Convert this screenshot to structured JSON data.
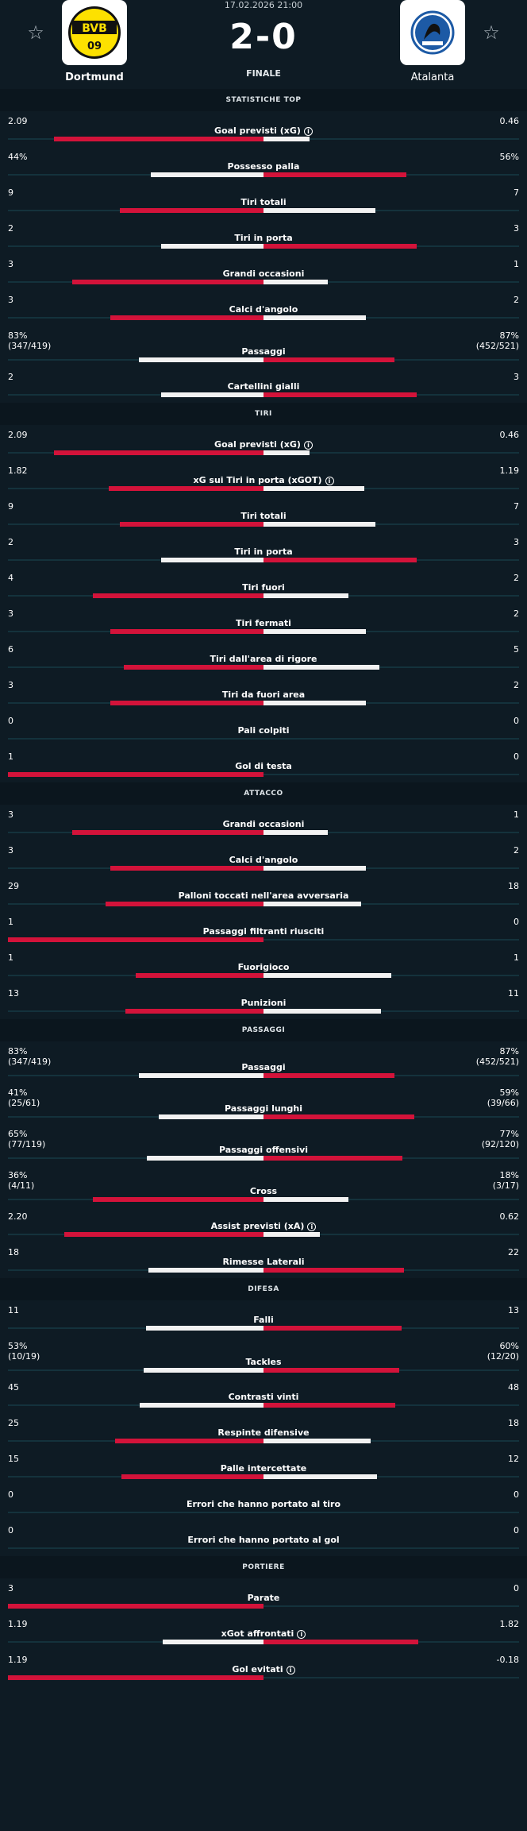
{
  "match": {
    "date": "17.02.2026 21:00",
    "score": "2-0",
    "status": "FINALE",
    "home_team": "Dortmund",
    "away_team": "Atalanta",
    "favorite_icon": "☆"
  },
  "colors": {
    "background": "#0e1b24",
    "leader": "#d3133a",
    "other": "#f2f2f2"
  },
  "sections": [
    {
      "title": "STATISTICHE TOP",
      "rows": [
        {
          "label": "Goal previsti (xG)",
          "info": true,
          "home": "2.09",
          "away": "0.46",
          "hn": 2.09,
          "an": 0.46
        },
        {
          "label": "Possesso palla",
          "home": "44%",
          "away": "56%",
          "hn": 44,
          "an": 56
        },
        {
          "label": "Tiri totali",
          "home": "9",
          "away": "7",
          "hn": 9,
          "an": 7
        },
        {
          "label": "Tiri in porta",
          "home": "2",
          "away": "3",
          "hn": 2,
          "an": 3
        },
        {
          "label": "Grandi occasioni",
          "home": "3",
          "away": "1",
          "hn": 3,
          "an": 1
        },
        {
          "label": "Calci d'angolo",
          "home": "3",
          "away": "2",
          "hn": 3,
          "an": 2
        },
        {
          "label": "Passaggi",
          "home": "83%",
          "home_sub": "(347/419)",
          "away": "87%",
          "away_sub": "(452/521)",
          "hn": 83,
          "an": 87
        },
        {
          "label": "Cartellini gialli",
          "home": "2",
          "away": "3",
          "hn": 2,
          "an": 3
        }
      ]
    },
    {
      "title": "TIRI",
      "rows": [
        {
          "label": "Goal previsti (xG)",
          "info": true,
          "home": "2.09",
          "away": "0.46",
          "hn": 2.09,
          "an": 0.46
        },
        {
          "label": "xG sui Tiri in porta (xGOT)",
          "info": true,
          "home": "1.82",
          "away": "1.19",
          "hn": 1.82,
          "an": 1.19
        },
        {
          "label": "Tiri totali",
          "home": "9",
          "away": "7",
          "hn": 9,
          "an": 7
        },
        {
          "label": "Tiri in porta",
          "home": "2",
          "away": "3",
          "hn": 2,
          "an": 3
        },
        {
          "label": "Tiri fuori",
          "home": "4",
          "away": "2",
          "hn": 4,
          "an": 2
        },
        {
          "label": "Tiri fermati",
          "home": "3",
          "away": "2",
          "hn": 3,
          "an": 2
        },
        {
          "label": "Tiri dall'area di rigore",
          "home": "6",
          "away": "5",
          "hn": 6,
          "an": 5
        },
        {
          "label": "Tiri da fuori area",
          "home": "3",
          "away": "2",
          "hn": 3,
          "an": 2
        },
        {
          "label": "Pali colpiti",
          "home": "0",
          "away": "0",
          "hn": 0,
          "an": 0
        },
        {
          "label": "Gol di testa",
          "home": "1",
          "away": "0",
          "hn": 1,
          "an": 0
        }
      ]
    },
    {
      "title": "ATTACCO",
      "rows": [
        {
          "label": "Grandi occasioni",
          "home": "3",
          "away": "1",
          "hn": 3,
          "an": 1
        },
        {
          "label": "Calci d'angolo",
          "home": "3",
          "away": "2",
          "hn": 3,
          "an": 2
        },
        {
          "label": "Palloni toccati nell'area avversaria",
          "home": "29",
          "away": "18",
          "hn": 29,
          "an": 18
        },
        {
          "label": "Passaggi filtranti riusciti",
          "home": "1",
          "away": "0",
          "hn": 1,
          "an": 0
        },
        {
          "label": "Fuorigioco",
          "home": "1",
          "away": "1",
          "hn": 1,
          "an": 1
        },
        {
          "label": "Punizioni",
          "home": "13",
          "away": "11",
          "hn": 13,
          "an": 11
        }
      ]
    },
    {
      "title": "PASSAGGI",
      "rows": [
        {
          "label": "Passaggi",
          "home": "83%",
          "home_sub": "(347/419)",
          "away": "87%",
          "away_sub": "(452/521)",
          "hn": 83,
          "an": 87
        },
        {
          "label": "Passaggi lunghi",
          "home": "41%",
          "home_sub": "(25/61)",
          "away": "59%",
          "away_sub": "(39/66)",
          "hn": 41,
          "an": 59
        },
        {
          "label": "Passaggi offensivi",
          "home": "65%",
          "home_sub": "(77/119)",
          "away": "77%",
          "away_sub": "(92/120)",
          "hn": 65,
          "an": 77
        },
        {
          "label": "Cross",
          "home": "36%",
          "home_sub": "(4/11)",
          "away": "18%",
          "away_sub": "(3/17)",
          "hn": 36,
          "an": 18
        },
        {
          "label": "Assist previsti (xA)",
          "info": true,
          "home": "2.20",
          "away": "0.62",
          "hn": 2.2,
          "an": 0.62
        },
        {
          "label": "Rimesse Laterali",
          "home": "18",
          "away": "22",
          "hn": 18,
          "an": 22
        }
      ]
    },
    {
      "title": "DIFESA",
      "rows": [
        {
          "label": "Falli",
          "home": "11",
          "away": "13",
          "hn": 11,
          "an": 13
        },
        {
          "label": "Tackles",
          "home": "53%",
          "home_sub": "(10/19)",
          "away": "60%",
          "away_sub": "(12/20)",
          "hn": 53,
          "an": 60
        },
        {
          "label": "Contrasti vinti",
          "home": "45",
          "away": "48",
          "hn": 45,
          "an": 48
        },
        {
          "label": "Respinte difensive",
          "home": "25",
          "away": "18",
          "hn": 25,
          "an": 18
        },
        {
          "label": "Palle intercettate",
          "home": "15",
          "away": "12",
          "hn": 15,
          "an": 12
        },
        {
          "label": "Errori che hanno portato al tiro",
          "home": "0",
          "away": "0",
          "hn": 0,
          "an": 0
        },
        {
          "label": "Errori che hanno portato al gol",
          "home": "0",
          "away": "0",
          "hn": 0,
          "an": 0
        }
      ]
    },
    {
      "title": "PORTIERE",
      "rows": [
        {
          "label": "Parate",
          "home": "3",
          "away": "0",
          "hn": 3,
          "an": 0
        },
        {
          "label": "xGot affrontati",
          "info": true,
          "home": "1.19",
          "away": "1.82",
          "hn": 1.19,
          "an": 1.82
        },
        {
          "label": "Gol evitati",
          "info": true,
          "home": "1.19",
          "away": "-0.18",
          "hn": 1.19,
          "an": -0.18
        }
      ]
    }
  ]
}
